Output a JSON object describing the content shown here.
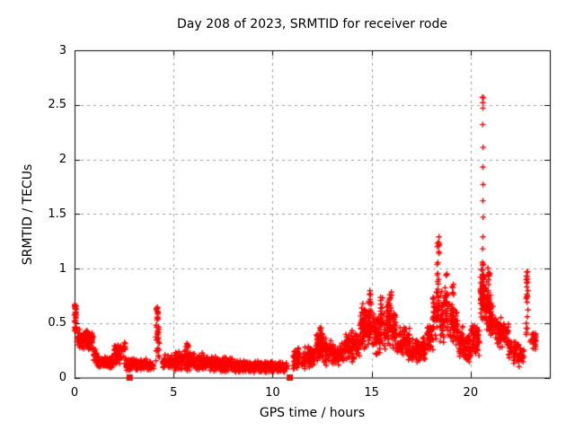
{
  "chart_data": {
    "type": "scatter",
    "title": "Day 208 of 2023, SRMTID for receiver rode",
    "xlabel": "GPS time / hours",
    "ylabel": "SRMTID / TECUs",
    "xlim": [
      0,
      24
    ],
    "ylim": [
      0,
      3
    ],
    "xticks": [
      0,
      5,
      10,
      15,
      20
    ],
    "yticks": [
      0,
      0.5,
      1,
      1.5,
      2,
      2.5,
      3
    ],
    "grid": "dashed",
    "legend": "none",
    "marker": "plus",
    "marker_color": "#ff0000",
    "grid_color": "#9c9c9c",
    "axis_color": "#000000",
    "background_color": "#ffffff",
    "gap_markers": {
      "shape": "filled-square",
      "y": 0,
      "x": [
        2.78,
        10.87
      ]
    },
    "bands": [
      [
        0.12,
        0.95,
        0.26,
        0.46,
        0.25,
        0.42,
        120
      ],
      [
        0.95,
        1.15,
        0.12,
        0.3,
        0.1,
        0.24,
        25
      ],
      [
        1.15,
        2.0,
        0.08,
        0.2,
        0.08,
        0.2,
        100
      ],
      [
        2.0,
        2.6,
        0.1,
        0.32,
        0.12,
        0.38,
        65
      ],
      [
        2.6,
        4.0,
        0.06,
        0.18,
        0.06,
        0.18,
        135
      ],
      [
        4.45,
        5.0,
        0.08,
        0.22,
        0.08,
        0.22,
        55
      ],
      [
        5.0,
        6.0,
        0.06,
        0.25,
        0.06,
        0.25,
        110
      ],
      [
        6.0,
        7.0,
        0.05,
        0.24,
        0.05,
        0.22,
        110
      ],
      [
        7.0,
        8.0,
        0.05,
        0.2,
        0.05,
        0.2,
        110
      ],
      [
        8.0,
        9.0,
        0.04,
        0.16,
        0.04,
        0.16,
        110
      ],
      [
        9.0,
        10.0,
        0.04,
        0.16,
        0.04,
        0.16,
        110
      ],
      [
        10.0,
        10.75,
        0.04,
        0.15,
        0.04,
        0.15,
        78
      ],
      [
        11.0,
        11.6,
        0.06,
        0.28,
        0.08,
        0.28,
        65
      ],
      [
        11.6,
        12.2,
        0.08,
        0.3,
        0.08,
        0.3,
        65
      ],
      [
        12.2,
        12.7,
        0.12,
        0.45,
        0.12,
        0.4,
        60
      ],
      [
        12.7,
        13.6,
        0.1,
        0.35,
        0.1,
        0.35,
        95
      ],
      [
        13.6,
        14.4,
        0.12,
        0.48,
        0.15,
        0.48,
        90
      ],
      [
        14.4,
        15.15,
        0.22,
        0.72,
        0.25,
        0.65,
        105
      ],
      [
        15.15,
        15.75,
        0.18,
        0.62,
        0.2,
        0.6,
        70
      ],
      [
        15.75,
        16.25,
        0.25,
        0.75,
        0.25,
        0.6,
        70
      ],
      [
        16.25,
        17.0,
        0.18,
        0.52,
        0.15,
        0.45,
        85
      ],
      [
        17.0,
        17.8,
        0.12,
        0.38,
        0.15,
        0.4,
        90
      ],
      [
        17.8,
        18.1,
        0.2,
        0.5,
        0.25,
        0.55,
        40
      ],
      [
        18.1,
        18.95,
        0.3,
        0.85,
        0.3,
        0.8,
        100
      ],
      [
        18.95,
        19.35,
        0.28,
        0.75,
        0.25,
        0.65,
        60
      ],
      [
        19.35,
        20.0,
        0.15,
        0.52,
        0.12,
        0.42,
        90
      ],
      [
        20.0,
        20.45,
        0.18,
        0.52,
        0.18,
        0.48,
        65
      ],
      [
        20.5,
        20.72,
        0.45,
        1.05,
        0.45,
        0.95,
        55
      ],
      [
        20.72,
        21.15,
        0.4,
        0.95,
        0.3,
        0.7,
        70
      ],
      [
        21.15,
        21.9,
        0.28,
        0.68,
        0.25,
        0.5,
        85
      ],
      [
        21.9,
        22.7,
        0.12,
        0.4,
        0.08,
        0.28,
        75
      ],
      [
        23.0,
        23.3,
        0.22,
        0.48,
        0.25,
        0.45,
        25
      ]
    ],
    "columns": [
      [
        0.04,
        0.1,
        0.42,
        0.67,
        24
      ],
      [
        4.2,
        0.2,
        0.15,
        0.67,
        36
      ],
      [
        5.65,
        0.2,
        0.14,
        0.32,
        18
      ],
      [
        12.45,
        0.18,
        0.2,
        0.46,
        20
      ],
      [
        14.9,
        0.15,
        0.4,
        0.8,
        26
      ],
      [
        15.5,
        0.12,
        0.35,
        0.75,
        18
      ],
      [
        15.95,
        0.12,
        0.4,
        0.8,
        18
      ],
      [
        18.35,
        0.1,
        0.5,
        1.28,
        20
      ],
      [
        18.75,
        0.15,
        0.45,
        1.0,
        18
      ],
      [
        19.1,
        0.1,
        0.4,
        0.88,
        14
      ],
      [
        20.62,
        0.06,
        0.8,
        1.12,
        14
      ],
      [
        20.92,
        0.1,
        0.5,
        1.02,
        16
      ],
      [
        22.85,
        0.1,
        0.38,
        0.97,
        22
      ]
    ],
    "outliers": [
      [
        20.6,
        2.57
      ],
      [
        20.645,
        2.565
      ],
      [
        20.62,
        2.52
      ],
      [
        20.62,
        2.47
      ],
      [
        20.61,
        2.32
      ],
      [
        20.63,
        2.11
      ],
      [
        20.62,
        1.93
      ],
      [
        20.63,
        1.77
      ],
      [
        20.62,
        1.62
      ],
      [
        20.63,
        1.47
      ],
      [
        20.62,
        1.29
      ],
      [
        20.61,
        1.18
      ],
      [
        18.4,
        1.29
      ],
      [
        18.42,
        1.22
      ],
      [
        18.41,
        1.14
      ],
      [
        0.02,
        0.66
      ],
      [
        0.04,
        0.63
      ],
      [
        0.03,
        0.6
      ]
    ]
  }
}
